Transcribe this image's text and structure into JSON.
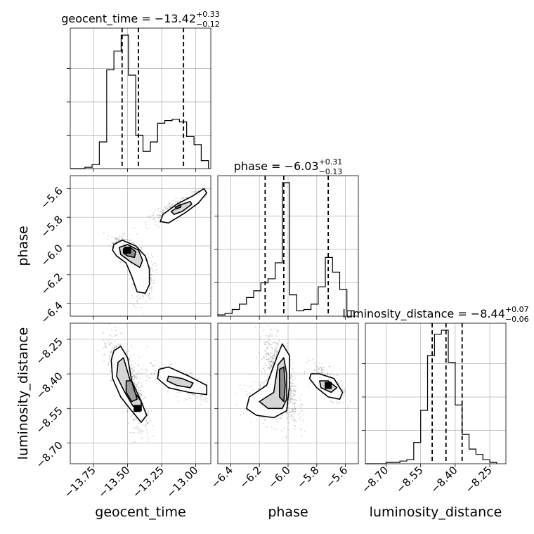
{
  "chart_data": {
    "type": "corner",
    "parameters": [
      "geocent_time",
      "phase",
      "luminosity_distance"
    ],
    "axis_labels": {
      "geocent_time": "geocent_time",
      "phase": "phase",
      "luminosity_distance": "luminosity_distance"
    },
    "ranges": {
      "geocent_time": [
        -13.92,
        -12.89
      ],
      "phase": [
        -6.49,
        -5.51
      ],
      "luminosity_distance": [
        -8.79,
        -8.18
      ]
    },
    "ticks": {
      "geocent_time": [
        {
          "v": -13.75,
          "label": "−13.75"
        },
        {
          "v": -13.5,
          "label": "−13.50"
        },
        {
          "v": -13.25,
          "label": "−13.25"
        },
        {
          "v": -13.0,
          "label": "−13.00"
        }
      ],
      "phase": [
        {
          "v": -6.4,
          "label": "−6.4"
        },
        {
          "v": -6.2,
          "label": "−6.2"
        },
        {
          "v": -6.0,
          "label": "−6.0"
        },
        {
          "v": -5.8,
          "label": "−5.8"
        },
        {
          "v": -5.6,
          "label": "−5.6"
        }
      ],
      "luminosity_distance": [
        {
          "v": -8.7,
          "label": "−8.70"
        },
        {
          "v": -8.55,
          "label": "−8.55"
        },
        {
          "v": -8.4,
          "label": "−8.40"
        },
        {
          "v": -8.25,
          "label": "−8.25"
        }
      ]
    },
    "titles": [
      {
        "param": "geocent_time",
        "prefix": "geocent_time = −13.42",
        "plus": "+0.33",
        "minus": "−0.12"
      },
      {
        "param": "phase",
        "prefix": "phase = −6.03",
        "plus": "+0.31",
        "minus": "−0.13"
      },
      {
        "param": "luminosity_distance",
        "prefix": "luminosity_distance = −8.44",
        "plus": "+0.07",
        "minus": "−0.06"
      }
    ],
    "quantiles": {
      "geocent_time": [
        -13.54,
        -13.42,
        -13.09
      ],
      "phase": [
        -6.16,
        -6.03,
        -5.72
      ],
      "luminosity_distance": [
        -8.5,
        -8.44,
        -8.37
      ]
    },
    "histograms": {
      "geocent_time": {
        "edges": [
          -13.92,
          -13.867,
          -13.813,
          -13.76,
          -13.707,
          -13.653,
          -13.6,
          -13.547,
          -13.493,
          -13.44,
          -13.387,
          -13.333,
          -13.28,
          -13.227,
          -13.173,
          -13.12,
          -13.067,
          -13.013,
          -12.96,
          -12.907
        ],
        "counts": [
          0.0,
          0.0,
          0.01,
          0.03,
          0.2,
          0.74,
          0.88,
          1.0,
          0.7,
          0.25,
          0.13,
          0.2,
          0.34,
          0.36,
          0.37,
          0.35,
          0.24,
          0.18,
          0.06
        ]
      },
      "phase": {
        "edges": [
          -6.49,
          -6.44,
          -6.39,
          -6.34,
          -6.29,
          -6.24,
          -6.19,
          -6.14,
          -6.09,
          -6.04,
          -5.99,
          -5.94,
          -5.89,
          -5.84,
          -5.79,
          -5.74,
          -5.69,
          -5.64,
          -5.59,
          -5.54
        ],
        "counts": [
          0.01,
          0.02,
          0.05,
          0.09,
          0.14,
          0.19,
          0.25,
          0.28,
          0.4,
          1.0,
          0.16,
          0.04,
          0.05,
          0.09,
          0.22,
          0.44,
          0.33,
          0.2,
          0.04
        ]
      },
      "luminosity_distance": {
        "edges": [
          -8.79,
          -8.76,
          -8.73,
          -8.7,
          -8.67,
          -8.64,
          -8.61,
          -8.58,
          -8.55,
          -8.52,
          -8.49,
          -8.46,
          -8.43,
          -8.4,
          -8.37,
          -8.34,
          -8.31,
          -8.28,
          -8.25,
          -8.22
        ],
        "counts": [
          0.0,
          0.0,
          0.0,
          0.01,
          0.01,
          0.02,
          0.03,
          0.16,
          0.4,
          0.81,
          0.97,
          1.0,
          0.76,
          0.44,
          0.22,
          0.11,
          0.07,
          0.03,
          0.01
        ]
      }
    },
    "pairs": {
      "phase_vs_geocent_time": {
        "x": "geocent_time",
        "y": "phase",
        "modes": [
          {
            "x": -13.5,
            "y": -6.03,
            "sx": 0.05,
            "sy": 0.04,
            "rho": -0.6,
            "n": 650
          },
          {
            "x": -13.38,
            "y": -6.25,
            "sx": 0.04,
            "sy": 0.08,
            "rho": 0.3,
            "n": 200
          },
          {
            "x": -13.12,
            "y": -5.72,
            "sx": 0.11,
            "sy": 0.06,
            "rho": 0.9,
            "n": 280
          }
        ],
        "contours": [
          {
            "level": "outer",
            "fill": "#ffffff",
            "points": [
              [
                -13.6,
                -5.99
              ],
              [
                -13.54,
                -5.96
              ],
              [
                -13.44,
                -6.0
              ],
              [
                -13.37,
                -6.07
              ],
              [
                -13.34,
                -6.16
              ],
              [
                -13.34,
                -6.27
              ],
              [
                -13.37,
                -6.33
              ],
              [
                -13.43,
                -6.32
              ],
              [
                -13.47,
                -6.21
              ],
              [
                -13.51,
                -6.12
              ],
              [
                -13.58,
                -6.07
              ],
              [
                -13.61,
                -6.03
              ]
            ]
          },
          {
            "level": "middle",
            "fill": "#d2d2d2",
            "points": [
              [
                -13.56,
                -6.01
              ],
              [
                -13.5,
                -5.99
              ],
              [
                -13.42,
                -6.03
              ],
              [
                -13.39,
                -6.1
              ],
              [
                -13.41,
                -6.15
              ],
              [
                -13.48,
                -6.11
              ],
              [
                -13.55,
                -6.06
              ]
            ]
          },
          {
            "level": "inner",
            "fill": "#888888",
            "points": [
              [
                -13.53,
                -6.02
              ],
              [
                -13.48,
                -6.01
              ],
              [
                -13.44,
                -6.04
              ],
              [
                -13.45,
                -6.08
              ],
              [
                -13.5,
                -6.07
              ],
              [
                -13.53,
                -6.05
              ]
            ]
          },
          {
            "level": "outer",
            "fill": "#ffffff",
            "points": [
              [
                -13.24,
                -5.78
              ],
              [
                -13.14,
                -5.71
              ],
              [
                -13.02,
                -5.65
              ],
              [
                -12.94,
                -5.6
              ],
              [
                -12.92,
                -5.63
              ],
              [
                -12.98,
                -5.7
              ],
              [
                -13.08,
                -5.77
              ],
              [
                -13.2,
                -5.84
              ],
              [
                -13.26,
                -5.83
              ]
            ]
          },
          {
            "level": "middle",
            "fill": "#d2d2d2",
            "points": [
              [
                -13.18,
                -5.76
              ],
              [
                -13.1,
                -5.71
              ],
              [
                -13.04,
                -5.69
              ],
              [
                -13.03,
                -5.71
              ],
              [
                -13.1,
                -5.76
              ],
              [
                -13.16,
                -5.78
              ]
            ]
          },
          {
            "level": "inner",
            "fill": "#777777",
            "points": [
              [
                -13.15,
                -5.73
              ],
              [
                -13.11,
                -5.71
              ],
              [
                -13.11,
                -5.73
              ],
              [
                -13.14,
                -5.74
              ]
            ]
          }
        ],
        "peak": {
          "x": -13.5,
          "y": -6.03
        }
      },
      "luminosity_distance_vs_geocent_time": {
        "x": "geocent_time",
        "y": "luminosity_distance",
        "modes": [
          {
            "x": -13.52,
            "y": -8.4,
            "sx": 0.06,
            "sy": 0.08,
            "rho": -0.7,
            "n": 700
          },
          {
            "x": -13.42,
            "y": -8.56,
            "sx": 0.04,
            "sy": 0.06,
            "rho": -0.4,
            "n": 150
          },
          {
            "x": -13.1,
            "y": -8.44,
            "sx": 0.13,
            "sy": 0.04,
            "rho": -0.7,
            "n": 300
          }
        ],
        "contours": [
          {
            "level": "outer",
            "fill": "#ffffff",
            "points": [
              [
                -13.6,
                -8.3
              ],
              [
                -13.55,
                -8.28
              ],
              [
                -13.5,
                -8.33
              ],
              [
                -13.47,
                -8.43
              ],
              [
                -13.4,
                -8.52
              ],
              [
                -13.36,
                -8.58
              ],
              [
                -13.4,
                -8.61
              ],
              [
                -13.47,
                -8.56
              ],
              [
                -13.55,
                -8.5
              ],
              [
                -13.61,
                -8.42
              ],
              [
                -13.62,
                -8.34
              ]
            ]
          },
          {
            "level": "middle",
            "fill": "#d2d2d2",
            "points": [
              [
                -13.57,
                -8.35
              ],
              [
                -13.53,
                -8.33
              ],
              [
                -13.5,
                -8.39
              ],
              [
                -13.46,
                -8.47
              ],
              [
                -13.4,
                -8.52
              ],
              [
                -13.4,
                -8.56
              ],
              [
                -13.46,
                -8.54
              ],
              [
                -13.52,
                -8.48
              ],
              [
                -13.58,
                -8.41
              ]
            ]
          },
          {
            "level": "inner",
            "fill": "#999999",
            "points": [
              [
                -13.51,
                -8.43
              ],
              [
                -13.47,
                -8.43
              ],
              [
                -13.43,
                -8.51
              ],
              [
                -13.47,
                -8.52
              ],
              [
                -13.51,
                -8.48
              ]
            ]
          },
          {
            "level": "outer",
            "fill": "#ffffff",
            "points": [
              [
                -13.27,
                -8.38
              ],
              [
                -13.2,
                -8.37
              ],
              [
                -13.05,
                -8.41
              ],
              [
                -12.92,
                -8.45
              ],
              [
                -12.92,
                -8.49
              ],
              [
                -13.05,
                -8.48
              ],
              [
                -13.2,
                -8.46
              ],
              [
                -13.28,
                -8.42
              ]
            ]
          },
          {
            "level": "middle",
            "fill": "#d2d2d2",
            "points": [
              [
                -13.2,
                -8.41
              ],
              [
                -13.1,
                -8.42
              ],
              [
                -13.02,
                -8.44
              ],
              [
                -13.04,
                -8.46
              ],
              [
                -13.14,
                -8.45
              ],
              [
                -13.21,
                -8.43
              ]
            ]
          }
        ],
        "peak": {
          "x": -13.43,
          "y": -8.55
        }
      },
      "luminosity_distance_vs_phase": {
        "x": "phase",
        "y": "luminosity_distance",
        "modes": [
          {
            "x": -6.05,
            "y": -8.42,
            "sx": 0.06,
            "sy": 0.09,
            "rho": -0.6,
            "n": 700
          },
          {
            "x": -6.14,
            "y": -8.52,
            "sx": 0.08,
            "sy": 0.05,
            "rho": -0.3,
            "n": 250
          },
          {
            "x": -5.72,
            "y": -8.44,
            "sx": 0.06,
            "sy": 0.04,
            "rho": -0.7,
            "n": 300
          }
        ],
        "contours": [
          {
            "level": "outer",
            "fill": "#ffffff",
            "points": [
              [
                -6.27,
                -8.5
              ],
              [
                -6.15,
                -8.45
              ],
              [
                -6.08,
                -8.33
              ],
              [
                -6.04,
                -8.27
              ],
              [
                -5.99,
                -8.32
              ],
              [
                -5.99,
                -8.45
              ],
              [
                -6.01,
                -8.56
              ],
              [
                -6.1,
                -8.59
              ],
              [
                -6.22,
                -8.58
              ],
              [
                -6.29,
                -8.55
              ]
            ]
          },
          {
            "level": "middle",
            "fill": "#d2d2d2",
            "points": [
              [
                -6.2,
                -8.52
              ],
              [
                -6.1,
                -8.48
              ],
              [
                -6.07,
                -8.36
              ],
              [
                -6.03,
                -8.33
              ],
              [
                -6.01,
                -8.4
              ],
              [
                -6.01,
                -8.51
              ],
              [
                -6.04,
                -8.55
              ],
              [
                -6.14,
                -8.55
              ]
            ]
          },
          {
            "level": "inner",
            "fill": "#888888",
            "points": [
              [
                -6.06,
                -8.38
              ],
              [
                -6.03,
                -8.37
              ],
              [
                -6.02,
                -8.45
              ],
              [
                -6.03,
                -8.52
              ],
              [
                -6.06,
                -8.5
              ]
            ]
          },
          {
            "level": "outer",
            "fill": "#ffffff",
            "points": [
              [
                -5.84,
                -8.4
              ],
              [
                -5.78,
                -8.4
              ],
              [
                -5.68,
                -8.42
              ],
              [
                -5.62,
                -8.48
              ],
              [
                -5.64,
                -8.51
              ],
              [
                -5.72,
                -8.5
              ],
              [
                -5.8,
                -8.46
              ],
              [
                -5.85,
                -8.42
              ]
            ]
          },
          {
            "level": "middle",
            "fill": "#d2d2d2",
            "points": [
              [
                -5.78,
                -8.43
              ],
              [
                -5.72,
                -8.43
              ],
              [
                -5.66,
                -8.46
              ],
              [
                -5.7,
                -8.48
              ],
              [
                -5.77,
                -8.46
              ]
            ]
          }
        ],
        "peak": {
          "x": -5.72,
          "y": -8.45
        }
      }
    },
    "grid": true,
    "colors": {
      "line": "#000000",
      "grid": "#b0b0b0",
      "scatter": "#000000"
    }
  }
}
